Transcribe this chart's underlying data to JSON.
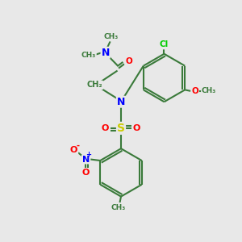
{
  "bg_color": "#e8e8e8",
  "bond_color": "#3a7a3a",
  "atom_colors": {
    "N": "#0000ff",
    "O": "#ff0000",
    "S": "#cccc00",
    "Cl": "#00cc00",
    "C": "#3a7a3a"
  },
  "figsize": [
    3.0,
    3.0
  ],
  "dpi": 100,
  "xlim": [
    0,
    10
  ],
  "ylim": [
    0,
    10
  ]
}
